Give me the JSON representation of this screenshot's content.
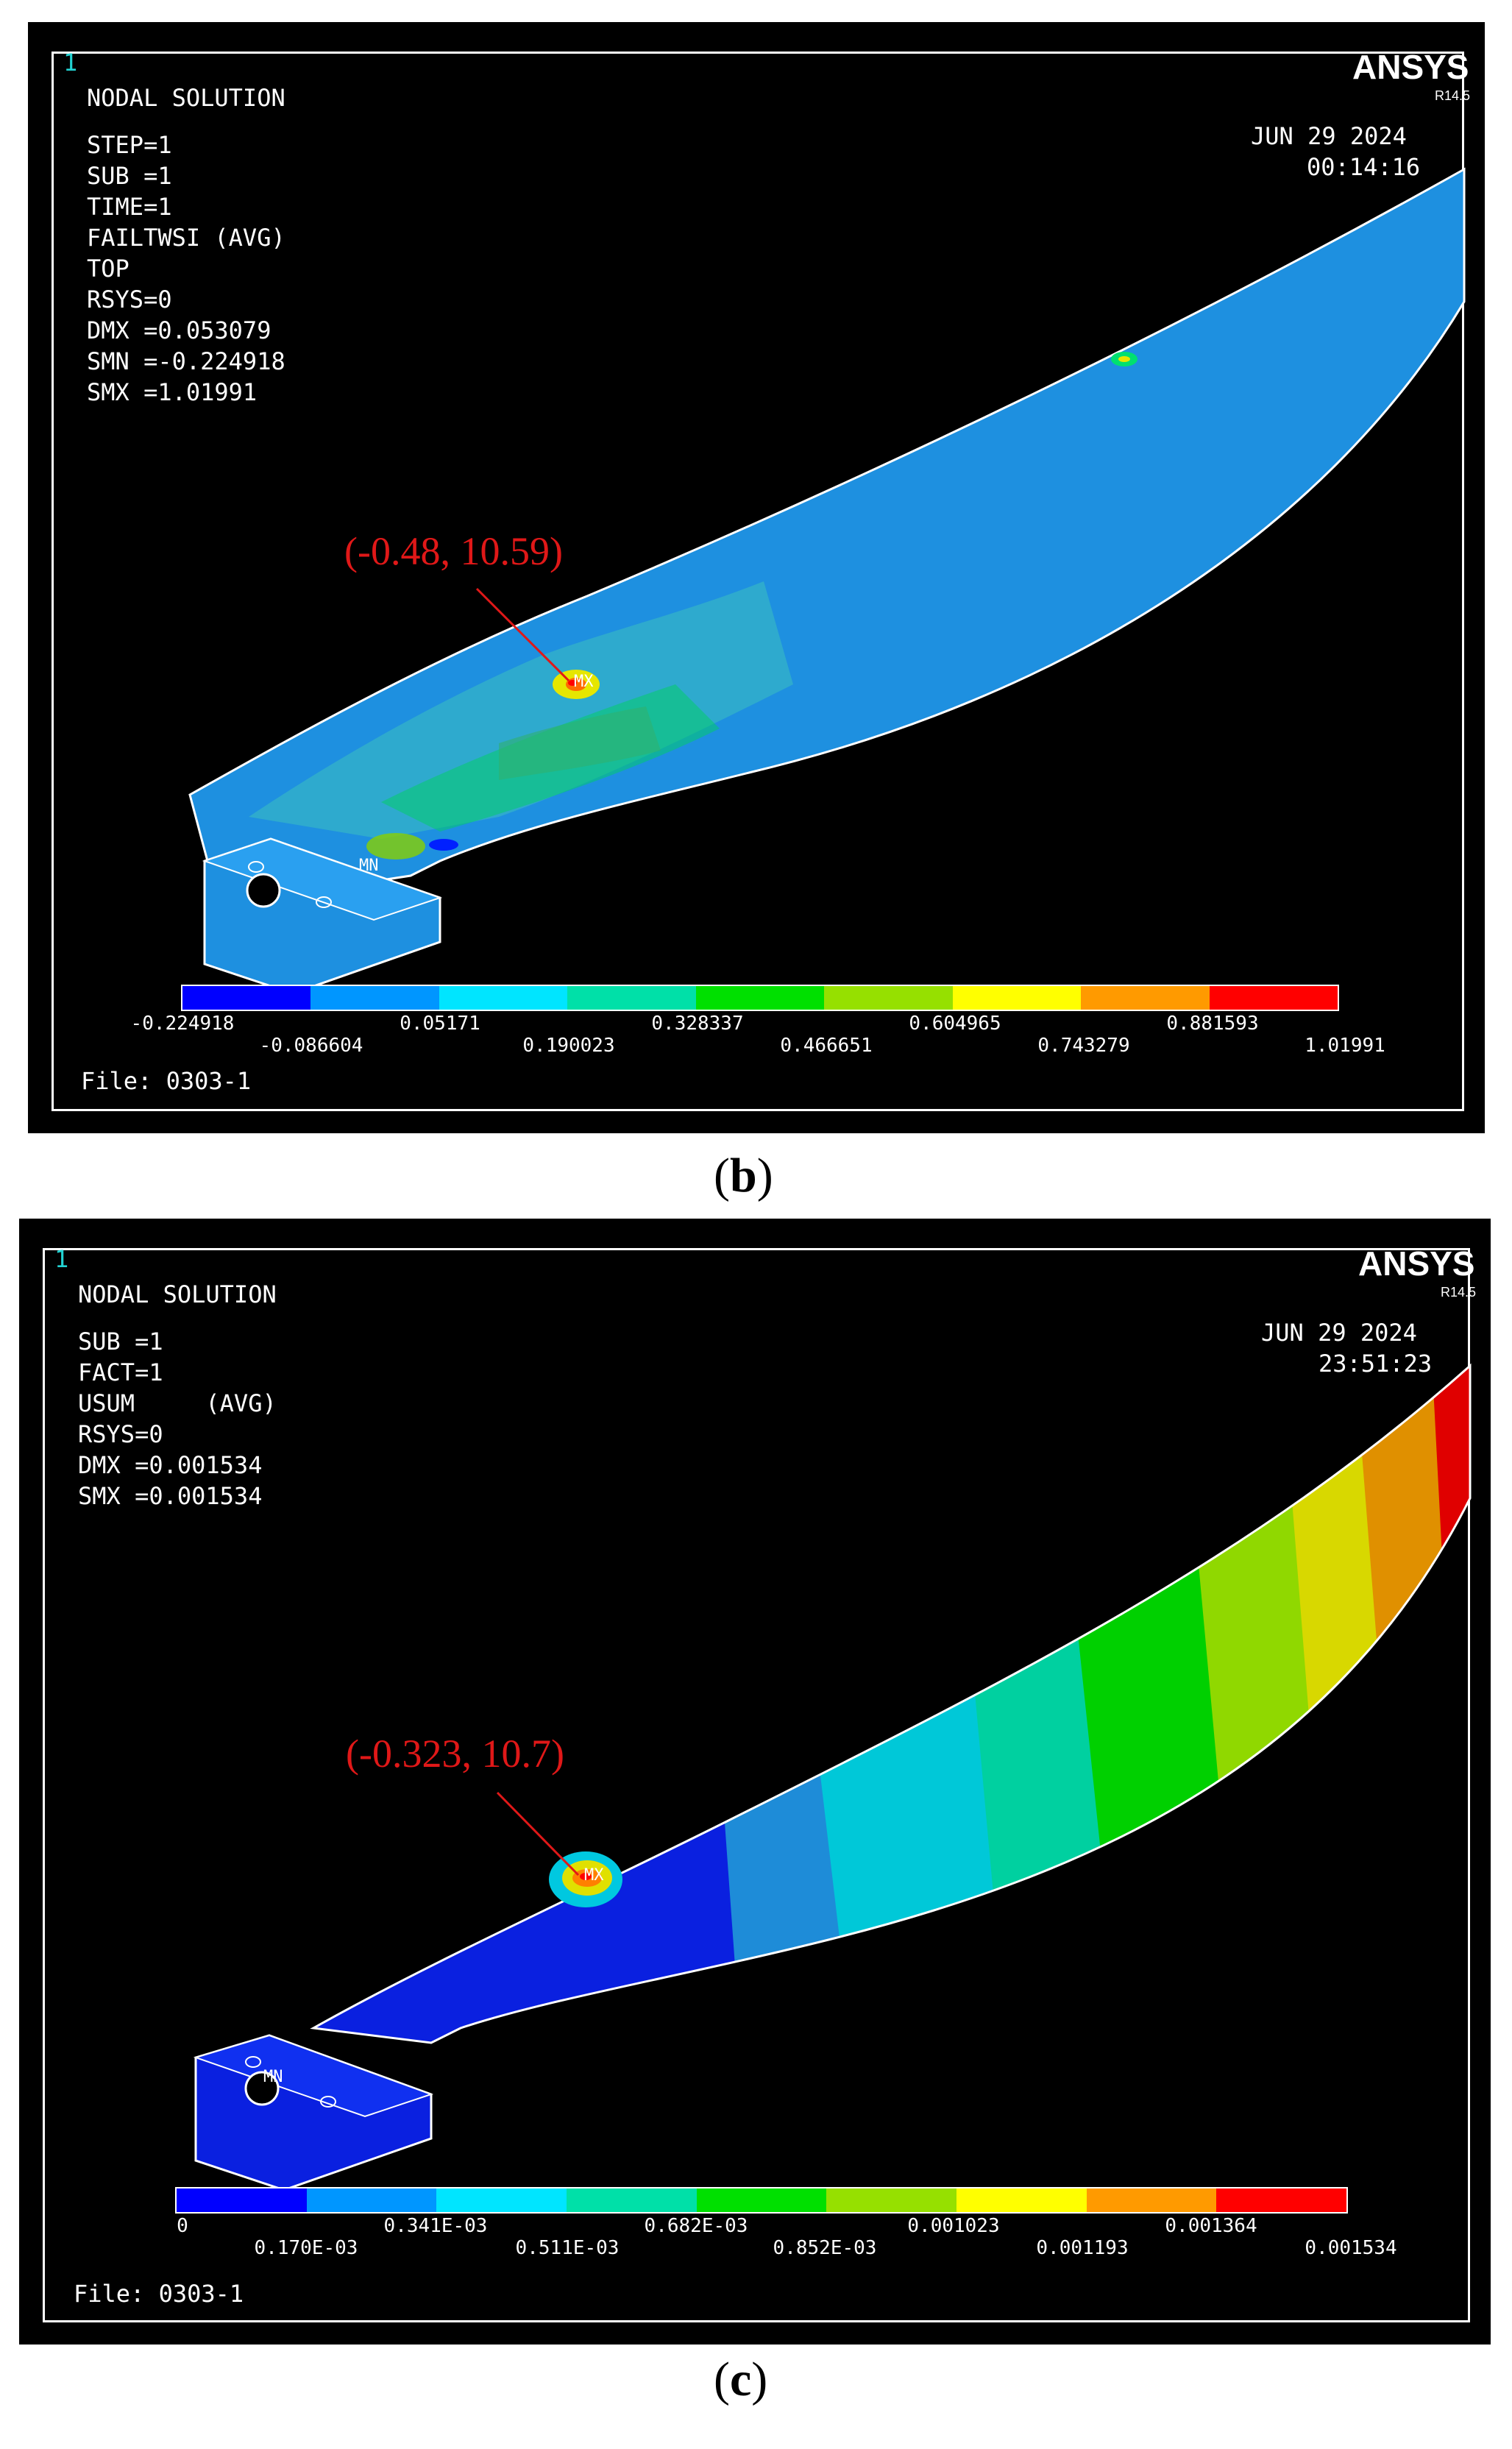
{
  "panels": [
    {
      "id": "b",
      "caption": "b",
      "window_number": "1",
      "brand": "ANSYS",
      "version": "R14.5",
      "title": "NODAL SOLUTION",
      "info_lines": [
        "STEP=1",
        "SUB =1",
        "TIME=1",
        "FAILTWSI (AVG)",
        "TOP",
        "RSYS=0",
        "DMX =0.053079",
        "SMN =-0.224918",
        "SMX =1.01991"
      ],
      "date": "JUN 29 2024",
      "time": "00:14:16",
      "annotation": "(-0.48, 10.59)",
      "max_marker": "MX",
      "min_marker": "MN",
      "file": "File: 0303-1",
      "legend_labels_top": [
        "-0.224918",
        "0.05171",
        "0.328337",
        "0.604965",
        "0.881593"
      ],
      "legend_labels_bottom": [
        "-0.086604",
        "0.190023",
        "0.466651",
        "0.743279",
        "1.01991"
      ],
      "legend_colors": [
        "#0000ff",
        "#0096ff",
        "#00e5ff",
        "#00e0a8",
        "#00e000",
        "#96e000",
        "#ffff00",
        "#ff9a00",
        "#ff0000"
      ]
    },
    {
      "id": "c",
      "caption": "c",
      "window_number": "1",
      "brand": "ANSYS",
      "version": "R14.5",
      "title": "NODAL SOLUTION",
      "info_lines": [
        "SUB =1",
        "FACT=1",
        "USUM     (AVG)",
        "RSYS=0",
        "DMX =0.001534",
        "SMX =0.001534"
      ],
      "date": "JUN 29 2024",
      "time": "23:51:23",
      "annotation": "(-0.323, 10.7)",
      "max_marker": "MX",
      "min_marker": "MN",
      "file": "File: 0303-1",
      "legend_labels_top": [
        "0",
        "0.341E-03",
        "0.682E-03",
        "0.001023",
        "0.001364"
      ],
      "legend_labels_bottom": [
        "0.170E-03",
        "0.511E-03",
        "0.852E-03",
        "0.001193",
        "0.001534"
      ],
      "legend_colors": [
        "#0000ff",
        "#0096ff",
        "#00e5ff",
        "#00e0a8",
        "#00e000",
        "#96e000",
        "#ffff00",
        "#ff9a00",
        "#ff0000"
      ]
    }
  ]
}
